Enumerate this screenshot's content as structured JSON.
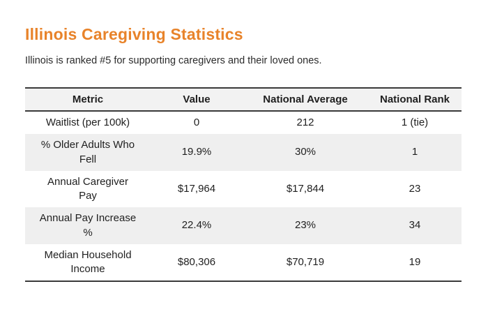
{
  "page": {
    "title": "Illinois Caregiving Statistics",
    "subtitle": "Illinois is ranked #5 for supporting caregivers and their loved ones."
  },
  "colors": {
    "accent": "#e8832a",
    "row_alt": "#efefef",
    "table_border": "#3a3a3a",
    "text": "#1f1f1f"
  },
  "chart_data": {
    "type": "table",
    "title": "Illinois Caregiving Statistics",
    "columns": [
      "Metric",
      "Value",
      "National Average",
      "National Rank"
    ],
    "rows": [
      [
        "Waitlist (per 100k)",
        "0",
        "212",
        "1 (tie)"
      ],
      [
        "% Older Adults Who Fell",
        "19.9%",
        "30%",
        "1"
      ],
      [
        "Annual Caregiver Pay",
        "$17,964",
        "$17,844",
        "23"
      ],
      [
        "Annual Pay Increase %",
        "22.4%",
        "23%",
        "34"
      ],
      [
        "Median Household Income",
        "$80,306",
        "$70,719",
        "19"
      ]
    ]
  }
}
